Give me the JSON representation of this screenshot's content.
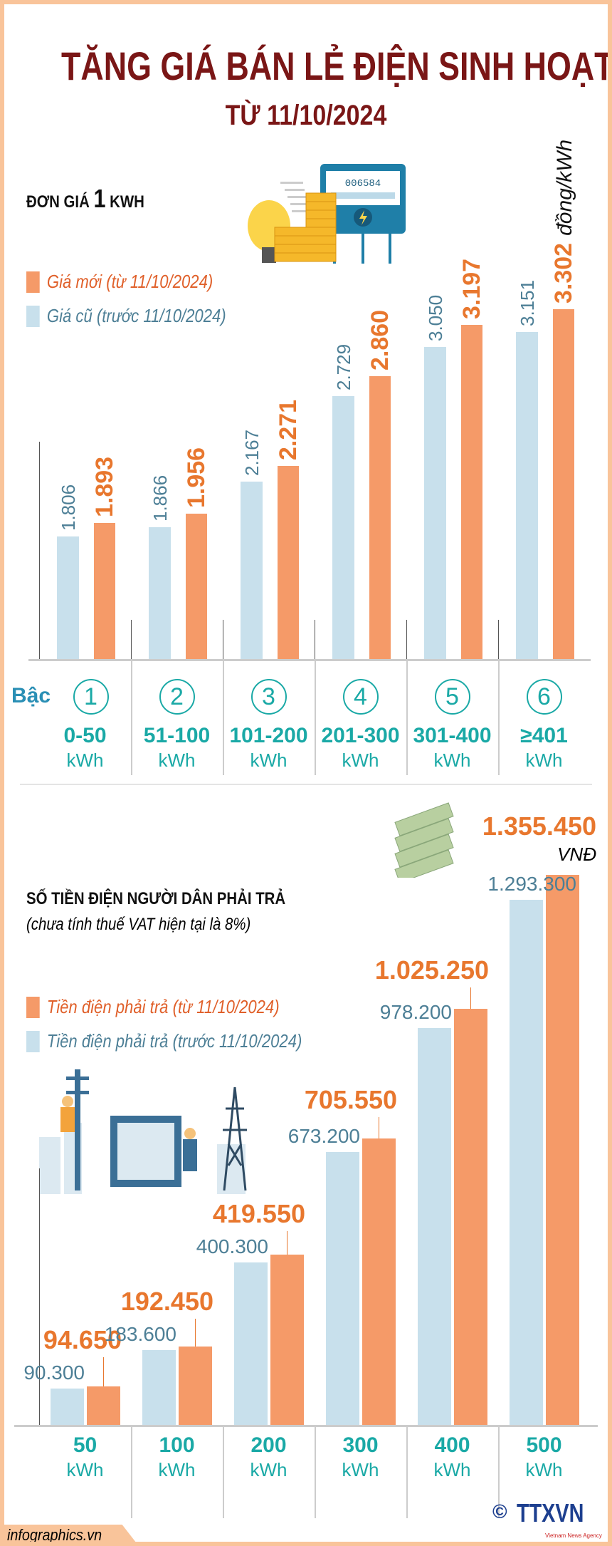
{
  "header": {
    "title": "TĂNG GIÁ BÁN LẺ ĐIỆN SINH HOẠT",
    "subtitle": "TỪ 11/10/2024"
  },
  "section1": {
    "heading_pre": "ĐƠN GIÁ",
    "heading_num": "1",
    "heading_post": "KWH",
    "meter_display": "006584",
    "legend_new": "Giá mới (từ 11/10/2024)",
    "legend_old": "Giá cũ (trước 11/10/2024)",
    "tier_label": "Bậc"
  },
  "section2": {
    "heading": "SỐ TIỀN ĐIỆN NGƯỜI DÂN PHẢI TRẢ",
    "note": "(chưa tính thuế VAT hiện tại là 8%)",
    "legend_new": "Tiền điện phải trả (từ 11/10/2024)",
    "legend_old": "Tiền điện phải trả (trước 11/10/2024)"
  },
  "footer": {
    "site": "infographics.vn",
    "copyright": "©",
    "logo_text": "TTXVN",
    "logo_sub": "Vietnam News Agency"
  },
  "colors": {
    "new": "#f59a68",
    "old": "#c8e0ec",
    "new_text": "#e8772e",
    "old_text": "#4d7f96",
    "title": "#7a1616",
    "tier": "#1aa9a6"
  },
  "chart_data": [
    {
      "type": "bar",
      "unit": "đồng/kWh",
      "categories": [
        "1",
        "2",
        "3",
        "4",
        "5",
        "6"
      ],
      "category_ranges": [
        "0-50",
        "51-100",
        "101-200",
        "201-300",
        "301-400",
        "≥401"
      ],
      "category_unit": "kWh",
      "series": [
        {
          "name": "Giá cũ (trước 11/10/2024)",
          "values": [
            1806,
            1866,
            2167,
            2729,
            3050,
            3151
          ],
          "labels": [
            "1.806",
            "1.866",
            "2.167",
            "2.729",
            "3.050",
            "3.151"
          ]
        },
        {
          "name": "Giá mới (từ 11/10/2024)",
          "values": [
            1893,
            1956,
            2271,
            2860,
            3197,
            3302
          ],
          "labels": [
            "1.893",
            "1.956",
            "2.271",
            "2.860",
            "3.197",
            "3.302"
          ]
        }
      ]
    },
    {
      "type": "bar",
      "unit": "VNĐ",
      "categories": [
        "50",
        "100",
        "200",
        "300",
        "400",
        "500"
      ],
      "category_unit": "kWh",
      "series": [
        {
          "name": "Tiền điện phải trả (trước 11/10/2024)",
          "values": [
            90300,
            183600,
            400300,
            673200,
            978200,
            1293300
          ],
          "labels": [
            "90.300",
            "183.600",
            "400.300",
            "673.200",
            "978.200",
            "1.293.300"
          ]
        },
        {
          "name": "Tiền điện phải trả (từ 11/10/2024)",
          "values": [
            94650,
            192450,
            419550,
            705550,
            1025250,
            1355450
          ],
          "labels": [
            "94.650",
            "192.450",
            "419.550",
            "705.550",
            "1.025.250",
            "1.355.450"
          ]
        }
      ]
    }
  ]
}
